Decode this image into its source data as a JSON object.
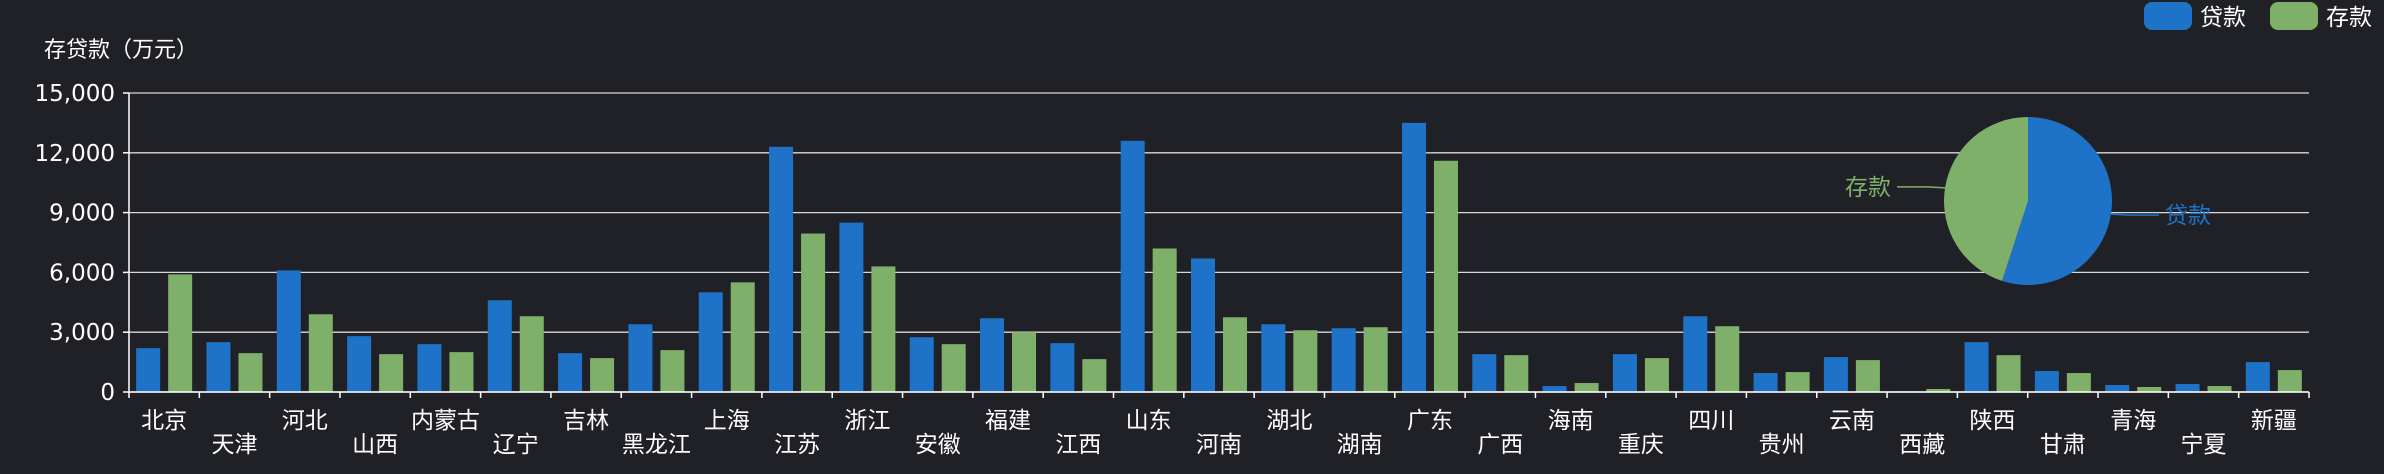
{
  "chart_data": {
    "type": "bar",
    "ylabel": "存贷款（万元）",
    "ylim": [
      0,
      15000
    ],
    "yticks": [
      0,
      3000,
      6000,
      9000,
      12000,
      15000
    ],
    "ytick_labels": [
      "0",
      "3,000",
      "6,000",
      "9,000",
      "12,000",
      "15,000"
    ],
    "grid": true,
    "legend": "top-right",
    "categories": [
      "北京",
      "天津",
      "河北",
      "山西",
      "内蒙古",
      "辽宁",
      "吉林",
      "黑龙江",
      "上海",
      "江苏",
      "浙江",
      "安徽",
      "福建",
      "江西",
      "山东",
      "河南",
      "湖北",
      "湖南",
      "广东",
      "广西",
      "海南",
      "重庆",
      "四川",
      "贵州",
      "云南",
      "西藏",
      "陕西",
      "甘肃",
      "青海",
      "宁夏",
      "新疆"
    ],
    "series": [
      {
        "name": "贷款",
        "color": "#1e73c8",
        "values": [
          2200,
          2500,
          6100,
          2800,
          2400,
          4600,
          1950,
          3400,
          5000,
          12300,
          8500,
          2750,
          3700,
          2450,
          12600,
          6700,
          3400,
          3200,
          13500,
          1900,
          300,
          1900,
          3800,
          950,
          1750,
          50,
          2500,
          1050,
          350,
          400,
          1500
        ]
      },
      {
        "name": "存款",
        "color": "#7fb06a",
        "values": [
          5900,
          1950,
          3900,
          1900,
          2000,
          3800,
          1700,
          2100,
          5500,
          7950,
          6300,
          2400,
          3000,
          1650,
          7200,
          3750,
          3100,
          3250,
          11600,
          1850,
          450,
          1700,
          3300,
          1000,
          1600,
          150,
          1850,
          950,
          250,
          300,
          1100
        ]
      }
    ],
    "pie": {
      "type": "pie",
      "slices": [
        {
          "name": "贷款",
          "value": 55,
          "color": "#1e73c8"
        },
        {
          "name": "存款",
          "value": 45,
          "color": "#7fb06a"
        }
      ]
    }
  }
}
